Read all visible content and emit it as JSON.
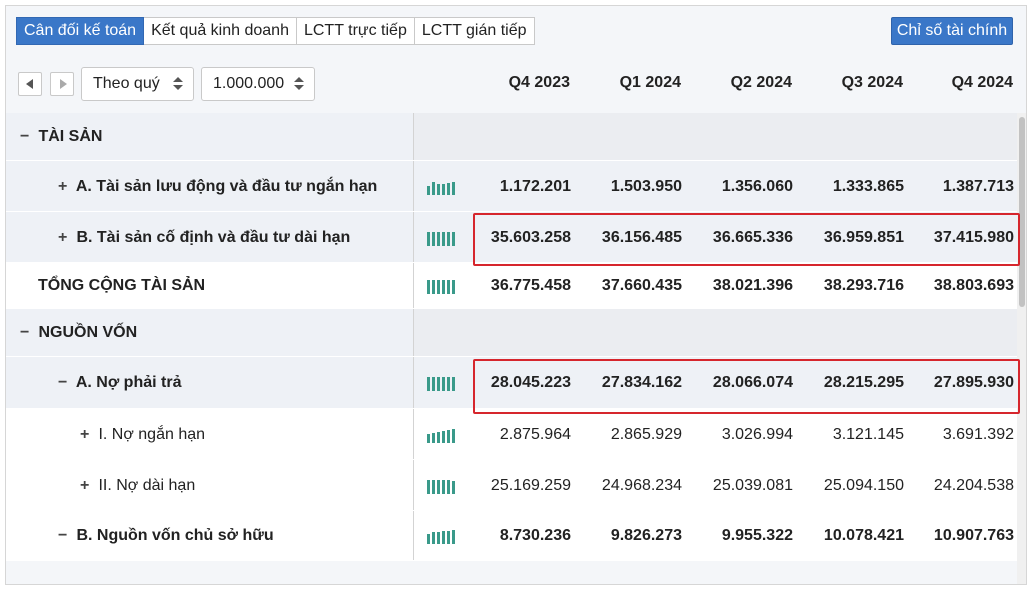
{
  "tabs": [
    {
      "label": "Cân đối kế toán",
      "active": true
    },
    {
      "label": "Kết quả kinh doanh",
      "active": false
    },
    {
      "label": "LCTT trực tiếp",
      "active": false
    },
    {
      "label": "LCTT gián tiếp",
      "active": false
    }
  ],
  "ratio_button": "Chỉ số tài chính",
  "controls": {
    "period_select": "Theo quý",
    "unit_select": "1.000.000"
  },
  "columns": [
    "Q4 2023",
    "Q1 2024",
    "Q2 2024",
    "Q3 2024",
    "Q4 2024"
  ],
  "rows": [
    {
      "toggle": "−",
      "label": "TÀI SẢN",
      "bold": true,
      "section": true,
      "values": []
    },
    {
      "toggle": "+",
      "label": "A. Tài sản lưu động và đầu tư ngắn hạn",
      "bold": true,
      "values": [
        "1.172.201",
        "1.503.950",
        "1.356.060",
        "1.333.865",
        "1.387.713"
      ]
    },
    {
      "toggle": "+",
      "label": "B. Tài sản cố định và đầu tư dài hạn",
      "bold": true,
      "values": [
        "35.603.258",
        "36.156.485",
        "36.665.336",
        "36.959.851",
        "37.415.980"
      ]
    },
    {
      "toggle": "",
      "label": "TỔNG CỘNG TÀI SẢN",
      "bold": true,
      "values": [
        "36.775.458",
        "37.660.435",
        "38.021.396",
        "38.293.716",
        "38.803.693"
      ]
    },
    {
      "toggle": "−",
      "label": "NGUỒN VỐN",
      "bold": true,
      "section": true,
      "values": []
    },
    {
      "toggle": "−",
      "label": "A. Nợ phải trả",
      "bold": true,
      "values": [
        "28.045.223",
        "27.834.162",
        "28.066.074",
        "28.215.295",
        "27.895.930"
      ]
    },
    {
      "toggle": "+",
      "label": "I. Nợ ngắn hạn",
      "bold": false,
      "values": [
        "2.875.964",
        "2.865.929",
        "3.026.994",
        "3.121.145",
        "3.691.392"
      ]
    },
    {
      "toggle": "+",
      "label": "II. Nợ dài hạn",
      "bold": false,
      "values": [
        "25.169.259",
        "24.968.234",
        "25.039.081",
        "25.094.150",
        "24.204.538"
      ]
    },
    {
      "toggle": "−",
      "label": "B. Nguồn vốn chủ sở hữu",
      "bold": true,
      "values": [
        "8.730.236",
        "9.826.273",
        "9.955.322",
        "10.078.421",
        "10.907.763"
      ]
    }
  ],
  "colors": {
    "accent": "#3a77c8",
    "highlight": "#d6262d",
    "sparkline": "#3a9a8a"
  }
}
